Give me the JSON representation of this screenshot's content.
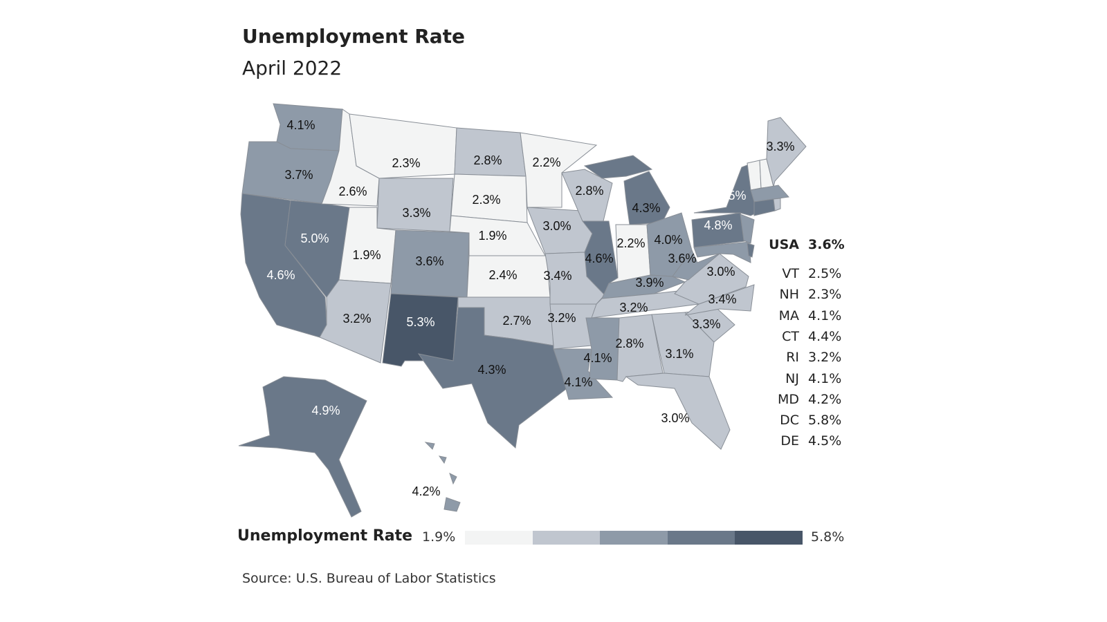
{
  "title": "Unemployment Rate",
  "subtitle": "April 2022",
  "states": {
    "WA": "4.1%",
    "OR": "3.7%",
    "CA": "4.6%",
    "NV": "5.0%",
    "ID": "2.6%",
    "MT": "2.3%",
    "WY": "3.3%",
    "UT": "1.9%",
    "CO": "3.6%",
    "AZ": "3.2%",
    "NM": "5.3%",
    "ND": "2.8%",
    "SD": "2.3%",
    "NE": "1.9%",
    "KS": "2.4%",
    "OK": "2.7%",
    "TX": "4.3%",
    "MN": "2.2%",
    "IA": "3.0%",
    "MO": "3.4%",
    "AR": "3.2%",
    "LA": "4.1%",
    "WI": "2.8%",
    "IL": "4.6%",
    "MI": "4.3%",
    "IN": "2.2%",
    "OH": "4.0%",
    "KY": "3.9%",
    "TN": "3.2%",
    "MS": "4.1%",
    "AL": "2.8%",
    "GA": "3.1%",
    "FL": "3.0%",
    "SC": "3.3%",
    "NC": "3.4%",
    "VA": "3.0%",
    "WV": "3.6%",
    "PA": "4.8%",
    "NY": "4.5%",
    "ME": "3.3%",
    "AK": "4.9%",
    "HI": "4.2%"
  },
  "side_list": {
    "usa": {
      "abbr": "USA",
      "value": "3.6%"
    },
    "items": [
      {
        "abbr": "VT",
        "value": "2.5%"
      },
      {
        "abbr": "NH",
        "value": "2.3%"
      },
      {
        "abbr": "MA",
        "value": "4.1%"
      },
      {
        "abbr": "CT",
        "value": "4.4%"
      },
      {
        "abbr": "RI",
        "value": "3.2%"
      },
      {
        "abbr": "NJ",
        "value": "4.1%"
      },
      {
        "abbr": "MD",
        "value": "4.2%"
      },
      {
        "abbr": "DC",
        "value": "5.8%"
      },
      {
        "abbr": "DE",
        "value": "4.5%"
      }
    ]
  },
  "legend": {
    "title": "Unemployment Rate",
    "min": "1.9%",
    "max": "5.8%",
    "range": [
      1.9,
      5.8
    ],
    "colors": [
      "#f3f4f4",
      "#c0c6cf",
      "#8e9aa8",
      "#6a7889",
      "#485668"
    ]
  },
  "source": "Source: U.S. Bureau of Labor Statistics"
}
